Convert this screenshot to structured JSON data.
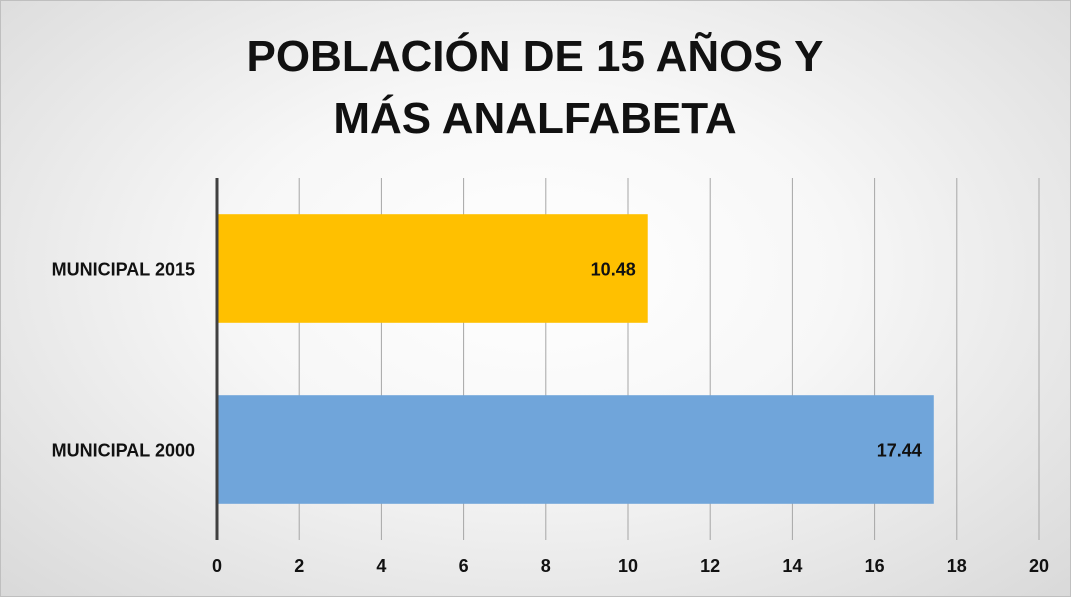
{
  "chart_data": {
    "type": "bar",
    "orientation": "horizontal",
    "title": "POBLACIÓN DE 15 AÑOS Y MÁS ANALFABETA",
    "categories": [
      "MUNICIPAL 2015",
      "MUNICIPAL 2000"
    ],
    "values": [
      10.48,
      17.44
    ],
    "colors": [
      "#ffc000",
      "#70a5da"
    ],
    "xlim": [
      0,
      20
    ],
    "xticks": [
      0,
      2,
      4,
      6,
      8,
      10,
      12,
      14,
      16,
      18,
      20
    ],
    "grid": true
  }
}
